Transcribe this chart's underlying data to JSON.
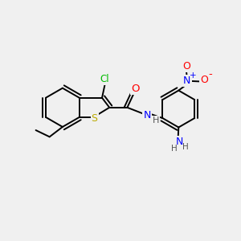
{
  "background_color": "#f0f0f0",
  "atom_colors": {
    "C": "#000000",
    "N": "#0000ff",
    "O": "#ff0000",
    "S": "#bbaa00",
    "Cl": "#00bb00",
    "H": "#555555",
    "default": "#000000"
  },
  "bond_color": "#000000",
  "bond_width": 1.4,
  "font_size": 8.5
}
